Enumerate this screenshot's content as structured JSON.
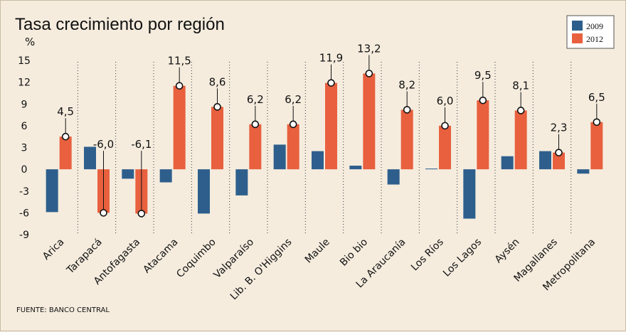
{
  "chart_data": {
    "type": "bar",
    "title": "Tasa crecimiento por región",
    "ylabel": "%",
    "xlabel": "",
    "ylim": [
      -9,
      15
    ],
    "yticks": [
      "15",
      "12",
      "9",
      "6",
      "3",
      "0",
      "-3",
      "-6",
      "-9"
    ],
    "categories": [
      "Arica",
      "Tarapacá",
      "Antofagasta",
      "Atacama",
      "Coquimbo",
      "Valparaíso",
      "Lib. B. O'Higgins",
      "Maule",
      "Bio bio",
      "La Araucanía",
      "Los Ríos",
      "Los Lagos",
      "Aysén",
      "Magallanes",
      "Metropolitana"
    ],
    "series": [
      {
        "name": "2009",
        "color": "#2e5f8c",
        "values": [
          -5.9,
          3.1,
          -1.3,
          -1.8,
          -6.1,
          -3.6,
          3.4,
          2.5,
          0.5,
          -2.1,
          0.1,
          -6.8,
          1.8,
          2.5,
          -0.6
        ]
      },
      {
        "name": "2012",
        "color": "#e8603e",
        "values": [
          4.5,
          -6.0,
          -6.1,
          11.5,
          8.6,
          6.2,
          6.2,
          11.9,
          13.2,
          8.2,
          6.0,
          9.5,
          8.1,
          2.3,
          6.5
        ]
      }
    ],
    "data_labels": [
      "4,5",
      "-6,0",
      "-6,1",
      "11,5",
      "8,6",
      "6,2",
      "6,2",
      "11,9",
      "13,2",
      "8,2",
      "6,0",
      "9,5",
      "8,1",
      "2,3",
      "6,5"
    ],
    "legend": {
      "position": "top-right",
      "entries": [
        "2009",
        "2012"
      ]
    },
    "grid": false
  },
  "source": "FUENTE: BANCO CENTRAL"
}
